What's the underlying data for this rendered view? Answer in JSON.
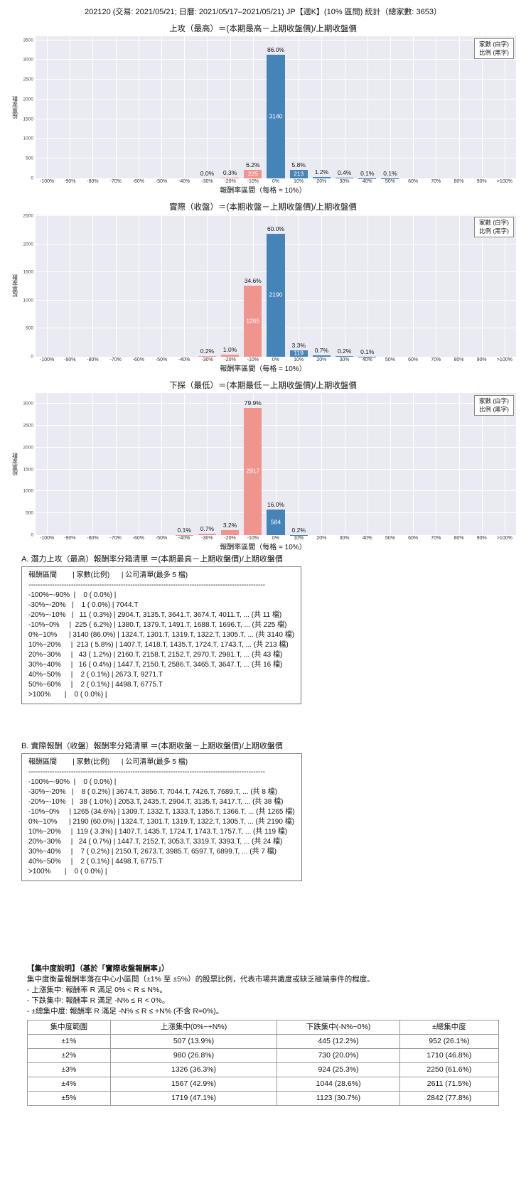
{
  "title": "202120 (交易: 2021/05/21; 日曆: 2021/05/17–2021/05/21) JP【週K】(10% 區間) 統計（總家數: 3653）",
  "total_count": 3653,
  "legend": {
    "line1": "家數 (白字)",
    "line2": "比例 (黑字)"
  },
  "colors": {
    "bar_negative": "#f0958d",
    "bar_positive": "#4484b8",
    "plot_bg": "#eaeaf2",
    "grid": "#ffffff"
  },
  "chart_data": [
    {
      "type": "bar",
      "title": "上攻（最高）＝(本期最高－上期收盤價)/上期收盤價",
      "xlabel": "報酬率區間（每格 = 10%）",
      "ylabel": "股票家數",
      "ylim": [
        0,
        3600
      ],
      "yticks": [
        0,
        500,
        1000,
        1500,
        2000,
        2500,
        3000,
        3500
      ],
      "grid": true,
      "legend_position": "top-right",
      "categories": [
        "-100%",
        "-90%",
        "-80%",
        "-70%",
        "-60%",
        "-50%",
        "-40%",
        "-30%",
        "-20%",
        "-10%",
        "0%",
        "10%",
        "20%",
        "30%",
        "40%",
        "50%",
        "60%",
        "70%",
        "80%",
        "90%",
        ">100%"
      ],
      "bars": [
        {
          "x": "-30%",
          "count": 1,
          "pct": "0.0%",
          "show_count": false
        },
        {
          "x": "-20%",
          "count": 11,
          "pct": "0.3%",
          "show_count": false
        },
        {
          "x": "-10%",
          "count": 225,
          "pct": "6.2%",
          "show_count": true
        },
        {
          "x": "0%",
          "count": 3140,
          "pct": "86.0%",
          "show_count": true
        },
        {
          "x": "10%",
          "count": 213,
          "pct": "5.8%",
          "show_count": true
        },
        {
          "x": "20%",
          "count": 43,
          "pct": "1.2%",
          "show_count": false
        },
        {
          "x": "30%",
          "count": 16,
          "pct": "0.4%",
          "show_count": false
        },
        {
          "x": "40%",
          "count": 2,
          "pct": "0.1%",
          "show_count": false
        },
        {
          "x": "50%",
          "count": 2,
          "pct": "0.1%",
          "show_count": false
        }
      ]
    },
    {
      "type": "bar",
      "title": "實際（收盤）＝(本期收盤－上期收盤價)/上期收盤價",
      "xlabel": "報酬率區間（每格 = 10%）",
      "ylabel": "股票家數",
      "ylim": [
        0,
        2530
      ],
      "yticks": [
        0,
        500,
        1000,
        1500,
        2000,
        2500
      ],
      "grid": true,
      "legend_position": "top-right",
      "categories": [
        "-100%",
        "-90%",
        "-80%",
        "-70%",
        "-60%",
        "-50%",
        "-40%",
        "-30%",
        "-20%",
        "-10%",
        "0%",
        "10%",
        "20%",
        "30%",
        "40%",
        "50%",
        "60%",
        "70%",
        "80%",
        "90%",
        ">100%"
      ],
      "bars": [
        {
          "x": "-30%",
          "count": 8,
          "pct": "0.2%",
          "show_count": false
        },
        {
          "x": "-20%",
          "count": 38,
          "pct": "1.0%",
          "show_count": false
        },
        {
          "x": "-10%",
          "count": 1265,
          "pct": "34.6%",
          "show_count": true
        },
        {
          "x": "0%",
          "count": 2190,
          "pct": "60.0%",
          "show_count": true
        },
        {
          "x": "10%",
          "count": 119,
          "pct": "3.3%",
          "show_count": true
        },
        {
          "x": "20%",
          "count": 24,
          "pct": "0.7%",
          "show_count": false
        },
        {
          "x": "30%",
          "count": 7,
          "pct": "0.2%",
          "show_count": false
        },
        {
          "x": "40%",
          "count": 2,
          "pct": "0.1%",
          "show_count": false
        }
      ]
    },
    {
      "type": "bar",
      "title": "下探（最低）＝(本期最低－上期收盤價)/上期收盤價",
      "xlabel": "報酬率區間（每格 = 10%）",
      "ylabel": "股票家數",
      "ylim": [
        0,
        3250
      ],
      "yticks": [
        0,
        500,
        1000,
        1500,
        2000,
        2500,
        3000
      ],
      "grid": true,
      "legend_position": "top-right",
      "categories": [
        "-100%",
        "-90%",
        "-80%",
        "-70%",
        "-60%",
        "-50%",
        "-40%",
        "-30%",
        "-20%",
        "-10%",
        "0%",
        "10%",
        "20%",
        "30%",
        "40%",
        "50%",
        "60%",
        "70%",
        "80%",
        "90%",
        ">100%"
      ],
      "bars": [
        {
          "x": "-40%",
          "count": 4,
          "pct": "0.1%",
          "show_count": false
        },
        {
          "x": "-30%",
          "count": 26,
          "pct": "0.7%",
          "show_count": false
        },
        {
          "x": "-20%",
          "count": 117,
          "pct": "3.2%",
          "show_count": false
        },
        {
          "x": "-10%",
          "count": 2917,
          "pct": "79.9%",
          "show_count": true
        },
        {
          "x": "0%",
          "count": 584,
          "pct": "16.0%",
          "show_count": true
        },
        {
          "x": "10%",
          "count": 7,
          "pct": "0.2%",
          "show_count": false
        }
      ]
    }
  ],
  "lists": {
    "a": {
      "heading": "A. 潛力上攻（最高）報酬率分箱清單 ＝(本期最高－上期收盤價)/上期收盤價",
      "rows": [
        "報酬區間        | 家數(比例)      | 公司清單(最多 5 檔)",
        "----------------------------------------------------------------------------------------------------",
        "-100%~-90%  |    0 ( 0.0%) |",
        "-30%~-20%   |    1 ( 0.0%) | 7044.T",
        "-20%~-10%   |   11 ( 0.3%) | 2904.T, 3135.T, 3641.T, 3674.T, 4011.T, ... (共 11 檔)",
        "-10%~0%     |  225 ( 6.2%) | 1380.T, 1379.T, 1491.T, 1688.T, 1696.T, ... (共 225 檔)",
        "0%~10%      | 3140 (86.0%) | 1324.T, 1301.T, 1319.T, 1322.T, 1305.T, ... (共 3140 檔)",
        "10%~20%     |  213 ( 5.8%) | 1407.T, 1418.T, 1435.T, 1724.T, 1743.T, ... (共 213 檔)",
        "20%~30%     |   43 ( 1.2%) | 2160.T, 2158.T, 2152.T, 2970.T, 2981.T, ... (共 43 檔)",
        "30%~40%     |   16 ( 0.4%) | 1447.T, 2150.T, 2586.T, 3465.T, 3647.T, ... (共 16 檔)",
        "40%~50%     |    2 ( 0.1%) | 2673.T, 9271.T",
        "50%~60%     |    2 ( 0.1%) | 4498.T, 6775.T",
        ">100%       |    0 ( 0.0%) |"
      ]
    },
    "b": {
      "heading": "B. 實際報酬（收盤）報酬率分箱清單 ＝(本期收盤－上期收盤價)/上期收盤價",
      "rows": [
        "報酬區間        | 家數(比例)      | 公司清單(最多 5 檔)",
        "----------------------------------------------------------------------------------------------------",
        "-100%~-90%  |    0 ( 0.0%) |",
        "-30%~-20%   |    8 ( 0.2%) | 3674.T, 3856.T, 7044.T, 7426.T, 7689.T, ... (共 8 檔)",
        "-20%~-10%   |   38 ( 1.0%) | 2053.T, 2435.T, 2904.T, 3135.T, 3417.T, ... (共 38 檔)",
        "-10%~0%     | 1265 (34.6%) | 1309.T, 1332.T, 1333.T, 1356.T, 1366.T, ... (共 1265 檔)",
        "0%~10%      | 2190 (60.0%) | 1324.T, 1301.T, 1319.T, 1322.T, 1305.T, ... (共 2190 檔)",
        "10%~20%     |  119 ( 3.3%) | 1407.T, 1435.T, 1724.T, 1743.T, 1757.T, ... (共 119 檔)",
        "20%~30%     |   24 ( 0.7%) | 1447.T, 2152.T, 3053.T, 3319.T, 3393.T, ... (共 24 檔)",
        "30%~40%     |    7 ( 0.2%) | 2150.T, 2673.T, 3985.T, 6597.T, 6899.T, ... (共 7 檔)",
        "40%~50%     |    2 ( 0.1%) | 4498.T, 6775.T",
        ">100%       |    0 ( 0.0%) |"
      ]
    }
  },
  "concentration": {
    "heading": "【集中度說明】（基於「實際收盤報酬率」）",
    "desc": "集中度衡量報酬率落在中心小區間（±1% 至 ±5%）的股票比例，代表市場共識度或缺乏極端事件的程度。",
    "bullets": [
      " - 上漲集中: 報酬率 R 滿足 0% < R ≤ N%。",
      " - 下跌集中: 報酬率 R 滿足 -N% ≤ R < 0%。",
      " - ±總集中度: 報酬率 R 滿足 -N% ≤ R ≤ +N% (不含 R=0%)。"
    ],
    "table": {
      "headers": [
        "集中度範圍",
        "上漲集中(0%~+N%)",
        "下跌集中(-N%~0%)",
        "±總集中度"
      ],
      "rows": [
        [
          "±1%",
          "507 (13.9%)",
          "445 (12.2%)",
          "952 (26.1%)"
        ],
        [
          "±2%",
          "980 (26.8%)",
          "730 (20.0%)",
          "1710 (46.8%)"
        ],
        [
          "±3%",
          "1326 (36.3%)",
          "924 (25.3%)",
          "2250 (61.6%)"
        ],
        [
          "±4%",
          "1567 (42.9%)",
          "1044 (28.6%)",
          "2611 (71.5%)"
        ],
        [
          "±5%",
          "1719 (47.1%)",
          "1123 (30.7%)",
          "2842 (77.8%)"
        ]
      ]
    }
  }
}
